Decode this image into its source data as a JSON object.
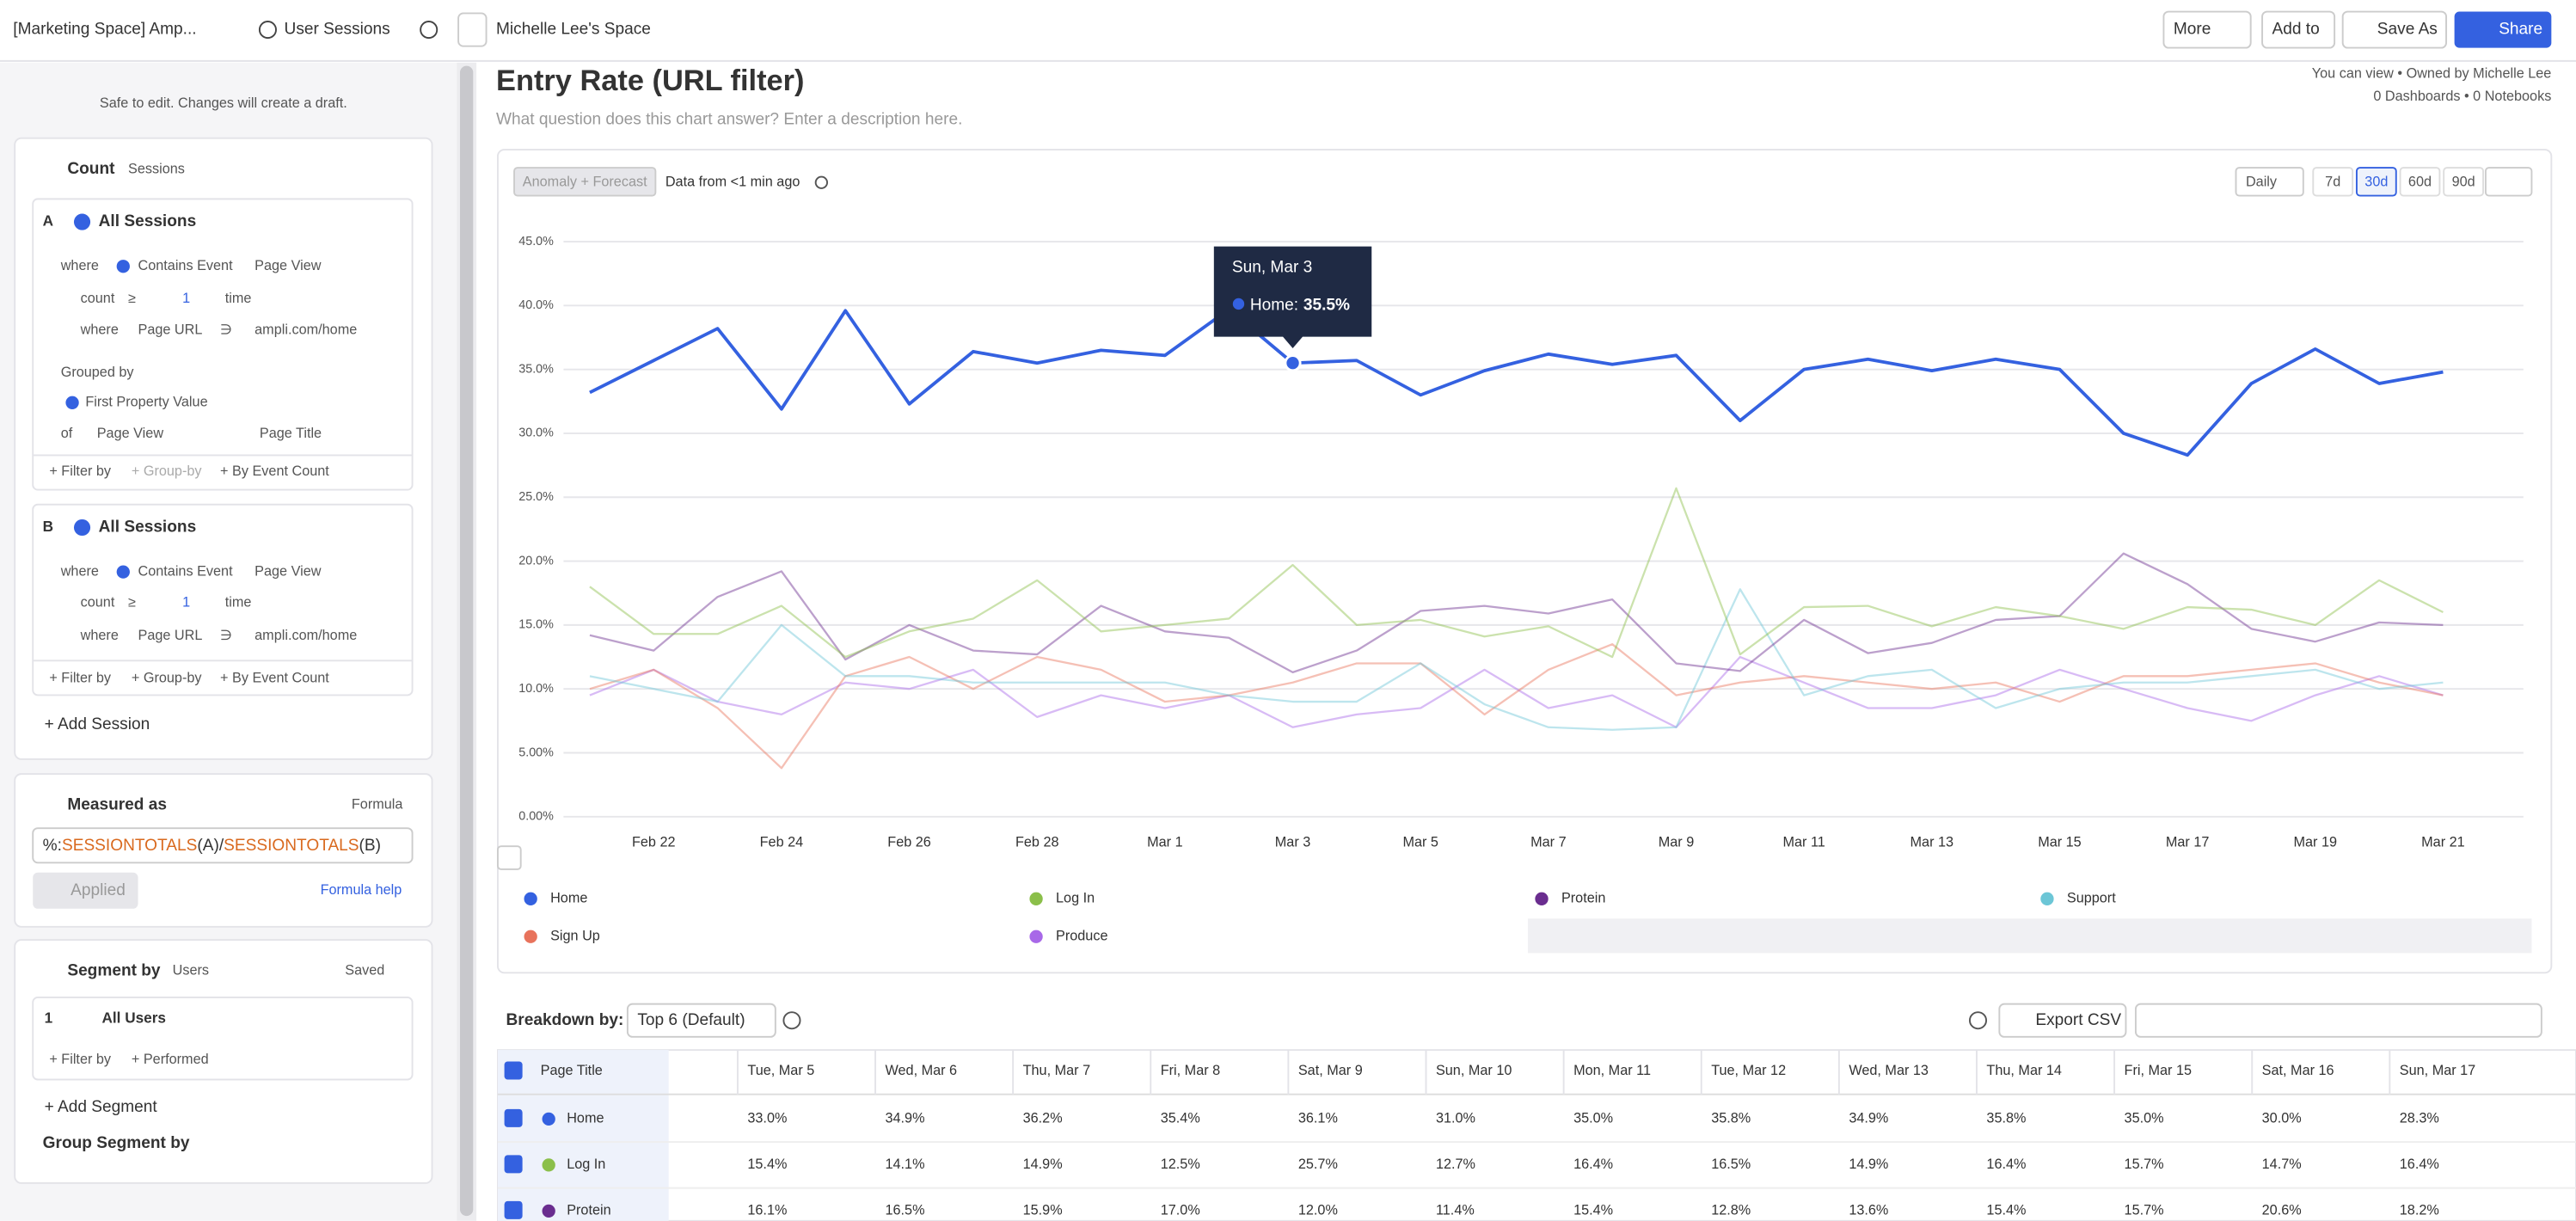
{
  "header": {
    "project": "[Marketing Space] Amp...",
    "chart_kind": "User Sessions",
    "space": "Michelle Lee's Space",
    "more": "More",
    "add_to": "Add to",
    "save_as": "Save As",
    "share": "Share",
    "ownership": "You can view • Owned by Michelle Lee",
    "counts": "0 Dashboards • 0 Notebooks",
    "description": "What question does this chart answer? Enter a description here."
  },
  "left": {
    "note": "Safe to edit. Changes will create a draft.",
    "count": "Count",
    "sessions": "Sessions",
    "a": {
      "letter": "A",
      "name": "All Sessions",
      "where": "where",
      "contains": "Contains Event",
      "event": "Page View",
      "count": "count",
      "ge": "≥",
      "n": "1",
      "time": "time",
      "where2": "where",
      "prop": "Page URL",
      "op": "∋",
      "url": "ampli.com/home",
      "grouped": "Grouped by",
      "first": "First Property Value",
      "of": "of",
      "of_event": "Page View",
      "of_prop": "Page Title",
      "filter": "+ Filter by",
      "group": "+ Group-by",
      "by_count": "+ By Event Count"
    },
    "b": {
      "letter": "B",
      "name": "All Sessions",
      "where": "where",
      "contains": "Contains Event",
      "event": "Page View",
      "count": "count",
      "ge": "≥",
      "n": "1",
      "time": "time",
      "where2": "where",
      "prop": "Page URL",
      "op": "∋",
      "url": "ampli.com/home",
      "filter": "+ Filter by",
      "group": "+ Group-by",
      "by_count": "+ By Event Count"
    },
    "add_session": "+ Add Session",
    "measured": "Measured as",
    "formula": "Formula",
    "formula_parts": [
      "%:",
      "SESSIONTOTALS",
      "(A)/",
      "SESSIONTOTALS",
      "(B)"
    ],
    "applied": "Applied",
    "formula_help": "Formula help",
    "segment_by": "Segment by",
    "users": "Users",
    "saved": "Saved",
    "seg_n": "1",
    "all_users": "All Users",
    "seg_filter": "+ Filter by",
    "performed": "+ Performed",
    "add_segment": "+ Add Segment",
    "group_segment": "Group Segment by"
  },
  "toolbar": {
    "anomaly": "Anomaly + Forecast",
    "fresh": "Data from <1 min ago",
    "interval": "Daily",
    "ranges": [
      "7d",
      "30d",
      "60d",
      "90d"
    ]
  },
  "chart_data": {
    "type": "line",
    "title": "Entry Rate (URL filter)",
    "categories": [
      null,
      "Feb 22",
      null,
      "Feb 24",
      null,
      "Feb 26",
      null,
      "Feb 28",
      null,
      "Mar 1",
      null,
      "Mar 3",
      null,
      "Mar 5",
      null,
      "Mar 7",
      null,
      "Mar 9",
      null,
      "Mar 11",
      null,
      "Mar 13",
      null,
      "Mar 15",
      null,
      "Mar 17",
      null,
      "Mar 19",
      null,
      "Mar 21"
    ],
    "ylim": [
      0,
      45
    ],
    "yticks": [
      {
        "value": 0,
        "label": "0.00%"
      },
      {
        "value": 5,
        "label": "5.00%"
      },
      {
        "value": 10,
        "label": "10.0%"
      },
      {
        "value": 15,
        "label": "15.0%"
      },
      {
        "value": 20,
        "label": "20.0%"
      },
      {
        "value": 25,
        "label": "25.0%"
      },
      {
        "value": 30,
        "label": "30.0%"
      },
      {
        "value": 35,
        "label": "35.0%"
      },
      {
        "value": 40,
        "label": "40.0%"
      },
      {
        "value": 45,
        "label": "45.0%"
      }
    ],
    "grid": true,
    "series": [
      {
        "name": "Home",
        "color": "#3461e0",
        "values": [
          33.2,
          35.7,
          38.2,
          31.9,
          39.6,
          32.3,
          36.4,
          35.5,
          36.5,
          36.1,
          39.7,
          35.5,
          35.7,
          33.0,
          34.9,
          36.2,
          35.4,
          36.1,
          31.0,
          35.0,
          35.8,
          34.9,
          35.8,
          35.0,
          30.0,
          28.3,
          33.9,
          36.6,
          33.9,
          34.8
        ]
      },
      {
        "name": "Log In",
        "color": "#8bbf4a",
        "values": [
          18.0,
          14.3,
          14.3,
          16.5,
          12.5,
          14.5,
          15.5,
          18.5,
          14.5,
          15.0,
          15.5,
          19.7,
          15.0,
          15.4,
          14.1,
          14.9,
          12.5,
          25.7,
          12.7,
          16.4,
          16.5,
          14.9,
          16.4,
          15.7,
          14.7,
          16.4,
          16.2,
          15.0,
          18.5,
          16.0
        ]
      },
      {
        "name": "Protein",
        "color": "#6a2d8f",
        "values": [
          14.2,
          13.0,
          17.2,
          19.2,
          12.3,
          15.0,
          13.0,
          12.7,
          16.5,
          14.5,
          14.0,
          11.3,
          13.0,
          16.1,
          16.5,
          15.9,
          17.0,
          12.0,
          11.4,
          15.4,
          12.8,
          13.6,
          15.4,
          15.7,
          20.6,
          18.2,
          14.7,
          13.7,
          15.2,
          15.0
        ]
      },
      {
        "name": "Support",
        "color": "#6cc6d6",
        "values": [
          11.0,
          10.0,
          9.0,
          15.0,
          11.0,
          11.0,
          10.5,
          10.5,
          10.5,
          10.5,
          9.5,
          9.0,
          9.0,
          12.0,
          8.8,
          7.0,
          6.8,
          7.0,
          17.8,
          9.5,
          11.0,
          11.5,
          8.5,
          10.0,
          10.5,
          10.5,
          11.0,
          11.5,
          10.0,
          10.5
        ]
      },
      {
        "name": "Sign Up",
        "color": "#e8735c",
        "values": [
          10.0,
          11.5,
          8.5,
          3.8,
          11.0,
          12.5,
          10.0,
          12.5,
          11.5,
          9.0,
          9.5,
          10.5,
          12.0,
          12.0,
          8.0,
          11.5,
          13.5,
          9.5,
          10.5,
          11.0,
          10.5,
          10.0,
          10.5,
          9.0,
          11.0,
          11.0,
          11.5,
          12.0,
          10.5,
          9.5
        ]
      },
      {
        "name": "Produce",
        "color": "#a868e8",
        "values": [
          9.5,
          11.5,
          9.0,
          8.0,
          10.5,
          10.0,
          11.5,
          7.8,
          9.5,
          8.5,
          9.5,
          7.0,
          8.0,
          8.5,
          11.5,
          8.5,
          9.5,
          7.0,
          12.5,
          10.5,
          8.5,
          8.5,
          9.5,
          11.5,
          10.0,
          8.5,
          7.5,
          9.5,
          11.0,
          9.5
        ]
      }
    ],
    "tooltip": {
      "title": "Sun, Mar 3",
      "label": "Home:",
      "value": "35.5%"
    }
  },
  "breakdown": {
    "label": "Breakdown by:",
    "choice": "Top 6 (Default)",
    "export": "Export CSV"
  },
  "table": {
    "columns": [
      "Page Title",
      "Tue, Mar 5",
      "Wed, Mar 6",
      "Thu, Mar 7",
      "Fri, Mar 8",
      "Sat, Mar 9",
      "Sun, Mar 10",
      "Mon, Mar 11",
      "Tue, Mar 12",
      "Wed, Mar 13",
      "Thu, Mar 14",
      "Fri, Mar 15",
      "Sat, Mar 16",
      "Sun, Mar 17"
    ],
    "rows": [
      [
        "Home",
        "33.0%",
        "34.9%",
        "36.2%",
        "35.4%",
        "36.1%",
        "31.0%",
        "35.0%",
        "35.8%",
        "34.9%",
        "35.8%",
        "35.0%",
        "30.0%",
        "28.3%"
      ],
      [
        "Log In",
        "15.4%",
        "14.1%",
        "14.9%",
        "12.5%",
        "25.7%",
        "12.7%",
        "16.4%",
        "16.5%",
        "14.9%",
        "16.4%",
        "15.7%",
        "14.7%",
        "16.4%"
      ],
      [
        "Protein",
        "16.1%",
        "16.5%",
        "15.9%",
        "17.0%",
        "12.0%",
        "11.4%",
        "15.4%",
        "12.8%",
        "13.6%",
        "15.4%",
        "15.7%",
        "20.6%",
        "18.2%"
      ]
    ]
  }
}
